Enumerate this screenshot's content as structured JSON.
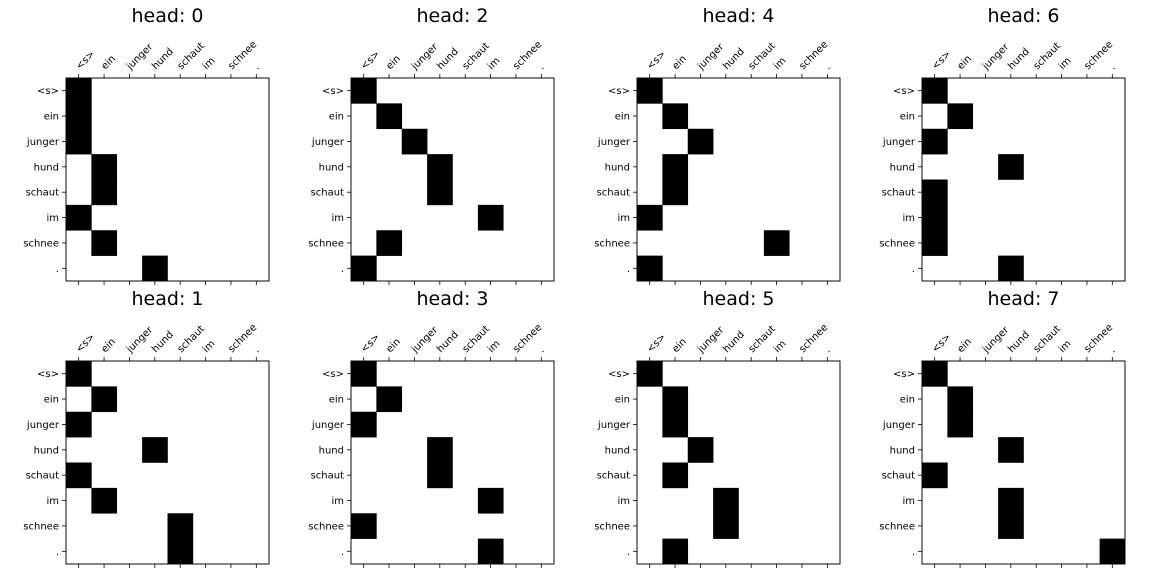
{
  "chart_data": {
    "type": "heatmap",
    "colors": {
      "attended": "#000000",
      "background": "#ffffff"
    },
    "grid": false,
    "x_ticks_position": "top",
    "x_tick_rotation_deg": 45,
    "tokens": [
      "<s>",
      "ein",
      "junger",
      "hund",
      "schaut",
      "im",
      "schnee",
      "."
    ],
    "panels": [
      {
        "title": "head: 0",
        "attend_col_per_row": [
          0,
          0,
          0,
          1,
          1,
          0,
          1,
          3
        ]
      },
      {
        "title": "head: 2",
        "attend_col_per_row": [
          0,
          1,
          2,
          3,
          3,
          5,
          1,
          0
        ]
      },
      {
        "title": "head: 4",
        "attend_col_per_row": [
          0,
          1,
          2,
          1,
          1,
          0,
          5,
          0
        ]
      },
      {
        "title": "head: 6",
        "attend_col_per_row": [
          0,
          1,
          0,
          3,
          0,
          0,
          0,
          3
        ]
      },
      {
        "title": "head: 1",
        "attend_col_per_row": [
          0,
          1,
          0,
          3,
          0,
          1,
          4,
          4
        ]
      },
      {
        "title": "head: 3",
        "attend_col_per_row": [
          0,
          1,
          0,
          3,
          3,
          5,
          0,
          5
        ]
      },
      {
        "title": "head: 5",
        "attend_col_per_row": [
          0,
          1,
          1,
          2,
          1,
          3,
          3,
          1
        ]
      },
      {
        "title": "head: 7",
        "attend_col_per_row": [
          0,
          1,
          1,
          3,
          0,
          3,
          3,
          7
        ]
      }
    ]
  }
}
